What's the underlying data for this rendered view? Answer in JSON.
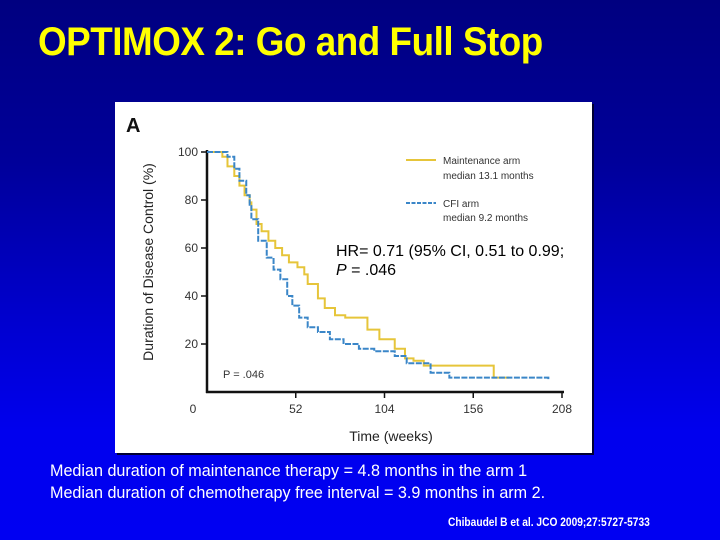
{
  "slide": {
    "title": "OPTIMOX 2: Go and Full Stop",
    "hazard_ratio_line": "HR= 0.71 (95% CI, 0.51 to 0.99;",
    "p_label": "P",
    "p_value_text": " = .046",
    "notes": [
      "Median duration of maintenance therapy = 4.8 months in the arm 1",
      "Median duration of chemotherapy free interval = 3.9 months in arm 2."
    ],
    "citation": "Chibaudel B et al. JCO 2009;27:5727-5733",
    "colors": {
      "title": "#ffff00",
      "background_top": "#000080",
      "background_bottom": "#0000f2",
      "maintenance_arm": "#e6c53a",
      "cfi_arm": "#3a86c8"
    }
  },
  "chart_data": {
    "type": "line",
    "subtype": "kaplan-meier step",
    "panel_label": "A",
    "title": "",
    "xlabel": "Time (weeks)",
    "ylabel": "Duration of Disease Control (%)",
    "xlim": [
      0,
      208
    ],
    "ylim": [
      0,
      100
    ],
    "x_ticks": [
      0,
      52,
      104,
      156,
      208
    ],
    "y_ticks": [
      20,
      40,
      60,
      80,
      100
    ],
    "grid": false,
    "legend_position": "upper right",
    "annotation": "P = .046",
    "series": [
      {
        "name": "Maintenance arm",
        "legend_sublabel": "median 13.1 months",
        "style": "solid",
        "color": "#e6c53a",
        "x": [
          0,
          6,
          9,
          12,
          16,
          19,
          22,
          25,
          26,
          29,
          32,
          36,
          40,
          44,
          48,
          53,
          57,
          59,
          65,
          69,
          75,
          81,
          91,
          94,
          101,
          110,
          116,
          121,
          127,
          168,
          168,
          177
        ],
        "y": [
          100,
          100,
          98,
          94,
          90,
          86,
          82,
          79,
          76,
          70,
          67,
          63,
          60,
          57,
          54,
          52,
          49,
          45,
          39,
          35,
          32,
          31,
          31,
          26,
          22,
          18,
          14,
          13,
          11,
          11,
          6,
          6
        ]
      },
      {
        "name": "CFI arm",
        "legend_sublabel": "median 9.2 months",
        "style": "dashed",
        "color": "#3a86c8",
        "x": [
          0,
          9,
          12,
          16,
          19,
          23,
          25,
          26,
          30,
          35,
          39,
          43,
          47,
          50,
          54,
          59,
          65,
          72,
          80,
          89,
          98,
          110,
          117,
          125,
          131,
          142,
          142,
          163,
          200
        ],
        "y": [
          100,
          100,
          98,
          93,
          88,
          82,
          78,
          72,
          63,
          56,
          51,
          47,
          40,
          36,
          31,
          27,
          25,
          22,
          20,
          18,
          17,
          15,
          12,
          12,
          8,
          8,
          6,
          6,
          5
        ]
      }
    ]
  }
}
